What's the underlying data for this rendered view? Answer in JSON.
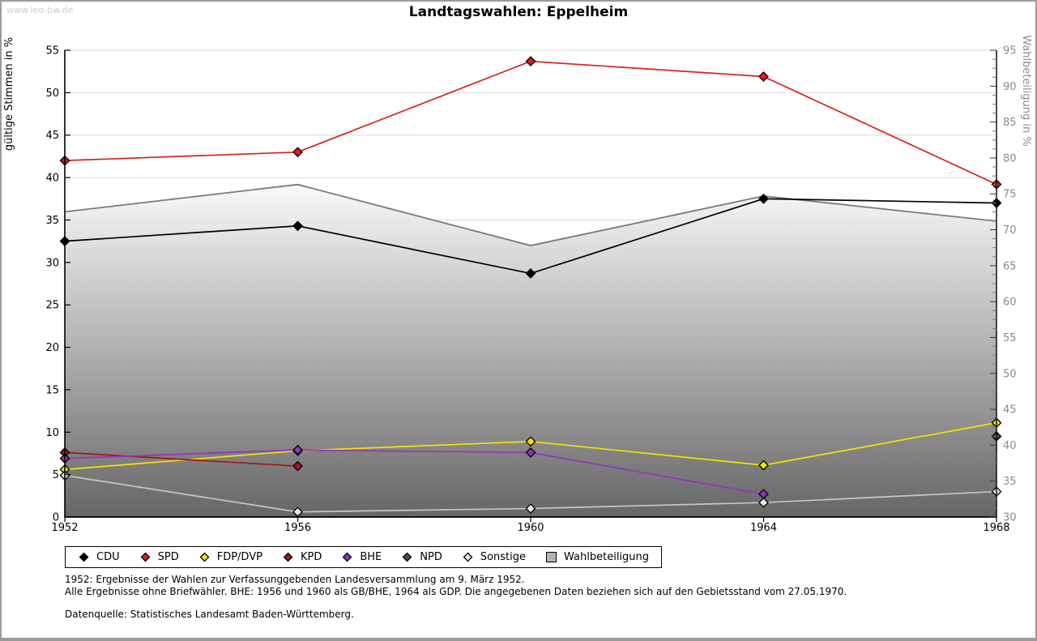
{
  "watermark": "www.leo-bw.de",
  "title": "Landtagswahlen: Eppelheim",
  "footnotes": [
    "1952: Ergebnisse der Wahlen zur Verfassunggebenden Landesversammlung am 9. März 1952.",
    "Alle Ergebnisse ohne Briefwähler. BHE: 1956 und 1960 als GB/BHE, 1964 als GDP. Die angegebenen Daten beziehen sich auf den Gebietsstand vom 27.05.1970.",
    "Datenquelle: Statistisches Landesamt Baden-Württemberg."
  ],
  "chart_data": {
    "type": "line",
    "title": "Landtagswahlen: Eppelheim",
    "x": [
      "1952",
      "1956",
      "1960",
      "1964",
      "1968"
    ],
    "left_axis": {
      "label": "gültige Stimmen in %",
      "min": 0,
      "max": 55,
      "ticks": [
        0,
        5,
        10,
        15,
        20,
        25,
        30,
        35,
        40,
        45,
        50,
        55
      ],
      "tick_color": "#000000",
      "label_color": "#000000"
    },
    "right_axis": {
      "label": "Wahlbeteiligung in %",
      "min": 30,
      "max": 95,
      "ticks": [
        30,
        35,
        40,
        45,
        50,
        55,
        60,
        65,
        70,
        75,
        80,
        85,
        90,
        95
      ],
      "minor_step": 1.25,
      "tick_color": "#8a8a8a",
      "label_color": "#8a8a8a"
    },
    "grid": {
      "show": true,
      "color": "#dbdbdb"
    },
    "series": [
      {
        "name": "Wahlbeteiligung",
        "type": "area",
        "axis": "right",
        "color": "#7a7a7a",
        "fill_top": "#f9f9f9",
        "fill_bottom": "#666666",
        "legend_swatch": "#b4b4b4",
        "values": [
          72.5,
          76.3,
          67.8,
          74.7,
          71.2
        ]
      },
      {
        "name": "CDU",
        "type": "line",
        "axis": "left",
        "color": "#000000",
        "values": [
          32.5,
          34.3,
          28.7,
          37.5,
          37.0
        ]
      },
      {
        "name": "SPD",
        "type": "line",
        "axis": "left",
        "color": "#dd1f17",
        "values": [
          42.0,
          43.0,
          53.7,
          51.9,
          39.2
        ]
      },
      {
        "name": "FDP/DVP",
        "type": "line",
        "axis": "left",
        "color": "#f2e400",
        "values": [
          5.6,
          7.8,
          8.9,
          6.1,
          11.1
        ]
      },
      {
        "name": "KPD",
        "type": "line",
        "axis": "left",
        "color": "#a81414",
        "values": [
          7.6,
          6.0,
          null,
          null,
          null
        ]
      },
      {
        "name": "BHE",
        "type": "line",
        "axis": "left",
        "color": "#9632bb",
        "values": [
          6.9,
          7.9,
          7.6,
          2.7,
          null
        ]
      },
      {
        "name": "NPD",
        "type": "line",
        "axis": "left",
        "color": "#5c4836",
        "values": [
          null,
          null,
          null,
          null,
          9.5
        ]
      },
      {
        "name": "Sonstige",
        "type": "line",
        "axis": "left",
        "color": "#c6c6c6",
        "marker_fill": "#e9e9e9",
        "values": [
          4.9,
          0.6,
          1.0,
          1.7,
          3.0
        ]
      }
    ],
    "legend_order": [
      "CDU",
      "SPD",
      "FDP/DVP",
      "KPD",
      "BHE",
      "NPD",
      "Sonstige",
      "Wahlbeteiligung"
    ],
    "legend_position": "bottom"
  }
}
